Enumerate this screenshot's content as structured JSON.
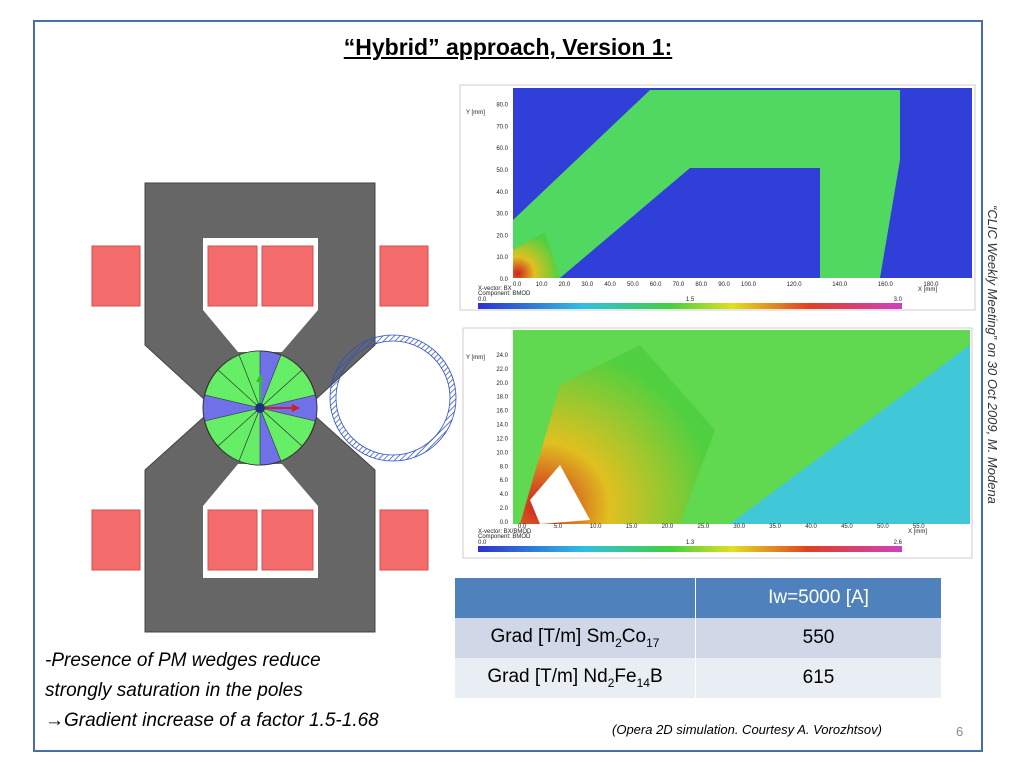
{
  "title": "“Hybrid” approach, Version 1:",
  "side_note": {
    "text": "“CLIC Weekly Meeting” on 30 Oct 2009, ",
    "author": "M. Modena"
  },
  "notes": [
    "-Presence of PM wedges reduce",
    "strongly saturation in the poles",
    "→Gradient  increase of a factor 1.5-1.68"
  ],
  "plot1": {
    "y_label": "Y [mm]",
    "x_label": "X [mm]",
    "yticks": [
      "0.0",
      "10.0",
      "20.0",
      "30.0",
      "40.0",
      "50.0",
      "60.0",
      "70.0",
      "80.0"
    ],
    "xticks": [
      "0.0",
      "10.0",
      "20.0",
      "30.0",
      "40.0",
      "50.0",
      "60.0",
      "70.0",
      "80.0",
      "90.0",
      "100.0",
      "120.0",
      "140.0",
      "160.0",
      "180.0"
    ],
    "legend": [
      "X-vector:  BX",
      "Component: BMOD"
    ],
    "colorbar": [
      "0.0",
      "1.5",
      "3.0"
    ]
  },
  "plot2": {
    "y_label": "Y [mm]",
    "x_label": "X [mm]",
    "yticks": [
      "0.0",
      "2.0",
      "4.0",
      "6.0",
      "8.0",
      "10.0",
      "12.0",
      "14.0",
      "16.0",
      "18.0",
      "20.0",
      "22.0",
      "24.0"
    ],
    "xticks": [
      "0.0",
      "5.0",
      "10.0",
      "15.0",
      "20.0",
      "25.0",
      "30.0",
      "35.0",
      "40.0",
      "45.0",
      "50.0",
      "55.0"
    ],
    "legend": [
      "X-vector:  BX/BMOD",
      "Component: BMOD"
    ],
    "colorbar": [
      "0.0",
      "1.3",
      "2.6"
    ]
  },
  "table": {
    "header": [
      "Iw=5000 [A]"
    ],
    "rows": [
      {
        "label": [
          "Grad [T/m] Sm",
          "2",
          "Co",
          "17"
        ],
        "value": 550
      },
      {
        "label": [
          "Grad [T/m] Nd",
          "2",
          "Fe",
          "14",
          "B"
        ],
        "value": 615
      }
    ]
  },
  "caption": "(Opera 2D simulation. Courtesy A. Vorozhtsov)",
  "page_number": 6
}
